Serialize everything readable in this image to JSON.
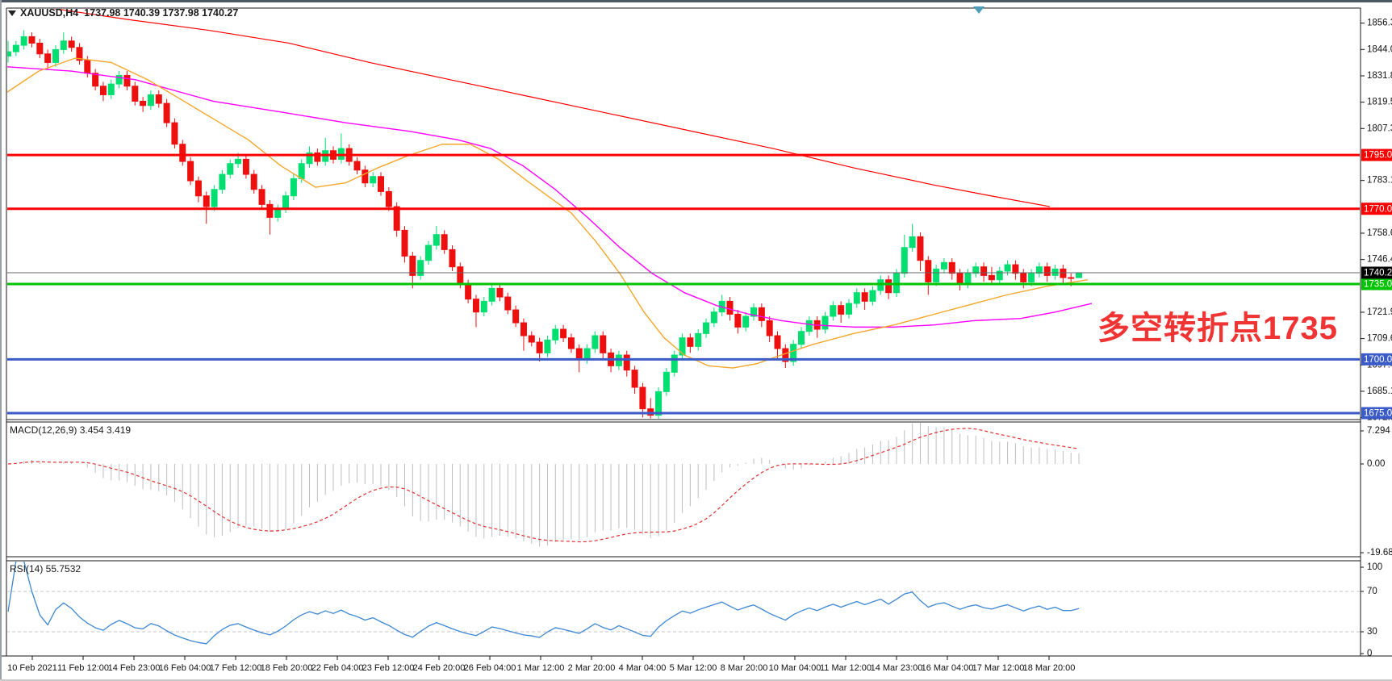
{
  "window": {
    "title": "XAUUSD,H4  1737.98 1740.39 1737.98 1740.27",
    "symbol": "XAUUSD",
    "timeframe": "H4"
  },
  "annotation": {
    "text": "多空转折点1735",
    "color": "#f03333"
  },
  "indicators": {
    "macd": {
      "text": "MACD(12,26,9) 3.454 3.419",
      "name": "MACD",
      "params": [
        12,
        26,
        9
      ],
      "values": [
        3.454,
        3.419
      ],
      "axis_labels": [
        "7.294",
        "0.00",
        "-19.689"
      ],
      "histogram_color": "#bdbdbd",
      "signal_color": "#e03030"
    },
    "rsi": {
      "text": "RSI(14) 55.7532",
      "name": "RSI",
      "period": 14,
      "value": 55.7532,
      "levels": [
        70,
        30
      ],
      "axis_labels": [
        "100",
        "70",
        "30",
        "0"
      ],
      "line_color": "#3c86d2"
    }
  },
  "chart_data": {
    "type": "candlestick",
    "title": "XAUUSD,H4",
    "last_bar": {
      "open": 1737.98,
      "high": 1740.39,
      "low": 1737.98,
      "close": 1740.27
    },
    "ylim": [
      1672.0,
      1863.3
    ],
    "colors": {
      "up": "#00df70",
      "down": "#ee0f0f",
      "ma_fast": "#f4a62a",
      "ma_mid": "#ff00ff",
      "ma_slow": "#ff0000",
      "price_line": "#666666"
    },
    "price_axis_ticks": [
      1856.3,
      1844.05,
      1831.8,
      1819.55,
      1807.3,
      1783.15,
      1758.65,
      1746.4,
      1721.9,
      1709.65,
      1697.4,
      1685.15,
      1672.9
    ],
    "time_labels": [
      "10 Feb 2021",
      "11 Feb 12:00",
      "14 Feb 23:00",
      "16 Feb 04:00",
      "17 Feb 12:00",
      "18 Feb 20:00",
      "22 Feb 04:00",
      "23 Feb 12:00",
      "24 Feb 20:00",
      "26 Feb 04:00",
      "1 Mar 12:00",
      "2 Mar 20:00",
      "4 Mar 04:00",
      "5 Mar 12:00",
      "8 Mar 20:00",
      "10 Mar 04:00",
      "11 Mar 12:00",
      "14 Mar 23:00",
      "16 Mar 04:00",
      "17 Mar 12:00",
      "18 Mar 20:00"
    ],
    "h_lines": [
      {
        "price": 1795.0,
        "label": "1795.00",
        "color": "#ff0000",
        "width": 3
      },
      {
        "price": 1770.0,
        "label": "1770.00",
        "color": "#ff0000",
        "width": 3
      },
      {
        "price": 1735.0,
        "label": "1735.00",
        "color": "#00c300",
        "width": 3
      },
      {
        "price": 1700.0,
        "label": "1700.00",
        "color": "#3b5bc8",
        "width": 3
      },
      {
        "price": 1675.0,
        "label": "1675.00",
        "color": "#3b5bc8",
        "width": 3
      }
    ],
    "current_price": {
      "value": 1740.27,
      "label": "1740.27",
      "tag_bg": "#000000"
    },
    "candles": [
      [
        1841,
        1848,
        1838,
        1843
      ],
      [
        1843,
        1848,
        1841,
        1846
      ],
      [
        1846,
        1853,
        1844,
        1850
      ],
      [
        1850,
        1852,
        1845,
        1847
      ],
      [
        1847,
        1849,
        1840,
        1842
      ],
      [
        1842,
        1844,
        1835,
        1838
      ],
      [
        1838,
        1846,
        1836,
        1844
      ],
      [
        1844,
        1852,
        1842,
        1848
      ],
      [
        1848,
        1850,
        1843,
        1845
      ],
      [
        1845,
        1847,
        1837,
        1839
      ],
      [
        1839,
        1841,
        1831,
        1833
      ],
      [
        1833,
        1835,
        1825,
        1827
      ],
      [
        1827,
        1829,
        1820,
        1823
      ],
      [
        1823,
        1830,
        1821,
        1828
      ],
      [
        1828,
        1834,
        1826,
        1832
      ],
      [
        1832,
        1834,
        1825,
        1827
      ],
      [
        1827,
        1829,
        1818,
        1820
      ],
      [
        1820,
        1822,
        1815,
        1818
      ],
      [
        1818,
        1825,
        1816,
        1823
      ],
      [
        1823,
        1825,
        1817,
        1819
      ],
      [
        1819,
        1821,
        1808,
        1810
      ],
      [
        1810,
        1812,
        1798,
        1800
      ],
      [
        1800,
        1802,
        1790,
        1792
      ],
      [
        1792,
        1794,
        1781,
        1783
      ],
      [
        1783,
        1785,
        1773,
        1776
      ],
      [
        1776,
        1778,
        1763,
        1771
      ],
      [
        1771,
        1781,
        1769,
        1779
      ],
      [
        1779,
        1788,
        1777,
        1786
      ],
      [
        1786,
        1793,
        1784,
        1791
      ],
      [
        1791,
        1796,
        1789,
        1793
      ],
      [
        1793,
        1795,
        1784,
        1786
      ],
      [
        1786,
        1788,
        1777,
        1779
      ],
      [
        1779,
        1781,
        1770,
        1772
      ],
      [
        1772,
        1774,
        1758,
        1766
      ],
      [
        1766,
        1772,
        1764,
        1770
      ],
      [
        1770,
        1778,
        1768,
        1776
      ],
      [
        1776,
        1786,
        1774,
        1784
      ],
      [
        1784,
        1793,
        1782,
        1791
      ],
      [
        1791,
        1799,
        1789,
        1796
      ],
      [
        1796,
        1798,
        1790,
        1792
      ],
      [
        1792,
        1803,
        1790,
        1797
      ],
      [
        1797,
        1799,
        1791,
        1793
      ],
      [
        1793,
        1805,
        1791,
        1798
      ],
      [
        1798,
        1800,
        1790,
        1792
      ],
      [
        1792,
        1794,
        1786,
        1788
      ],
      [
        1788,
        1790,
        1780,
        1782
      ],
      [
        1782,
        1787,
        1780,
        1785
      ],
      [
        1785,
        1787,
        1776,
        1778
      ],
      [
        1778,
        1780,
        1769,
        1771
      ],
      [
        1771,
        1773,
        1757,
        1760
      ],
      [
        1760,
        1762,
        1745,
        1748
      ],
      [
        1748,
        1750,
        1733,
        1739
      ],
      [
        1739,
        1748,
        1737,
        1746
      ],
      [
        1746,
        1755,
        1744,
        1753
      ],
      [
        1753,
        1762,
        1751,
        1758
      ],
      [
        1758,
        1760,
        1749,
        1751
      ],
      [
        1751,
        1753,
        1741,
        1743
      ],
      [
        1743,
        1745,
        1733,
        1735
      ],
      [
        1735,
        1737,
        1726,
        1728
      ],
      [
        1728,
        1730,
        1715,
        1722
      ],
      [
        1722,
        1729,
        1720,
        1727
      ],
      [
        1727,
        1735,
        1725,
        1733
      ],
      [
        1733,
        1735,
        1727,
        1729
      ],
      [
        1729,
        1731,
        1721,
        1723
      ],
      [
        1723,
        1725,
        1715,
        1717
      ],
      [
        1717,
        1719,
        1704,
        1711
      ],
      [
        1711,
        1713,
        1706,
        1708
      ],
      [
        1708,
        1710,
        1699,
        1703
      ],
      [
        1703,
        1711,
        1701,
        1709
      ],
      [
        1709,
        1716,
        1707,
        1714
      ],
      [
        1714,
        1716,
        1708,
        1710
      ],
      [
        1710,
        1712,
        1703,
        1705
      ],
      [
        1705,
        1707,
        1694,
        1700
      ],
      [
        1700,
        1707,
        1698,
        1705
      ],
      [
        1705,
        1713,
        1703,
        1711
      ],
      [
        1711,
        1713,
        1700,
        1703
      ],
      [
        1703,
        1705,
        1694,
        1697
      ],
      [
        1697,
        1704,
        1695,
        1702
      ],
      [
        1702,
        1704,
        1692,
        1695
      ],
      [
        1695,
        1697,
        1684,
        1687
      ],
      [
        1687,
        1689,
        1673,
        1677
      ],
      [
        1677,
        1682,
        1672.5,
        1674
      ],
      [
        1674,
        1687,
        1672,
        1685
      ],
      [
        1685,
        1696,
        1683,
        1694
      ],
      [
        1694,
        1704,
        1692,
        1702
      ],
      [
        1702,
        1712,
        1700,
        1710
      ],
      [
        1710,
        1712,
        1703,
        1706
      ],
      [
        1706,
        1714,
        1704,
        1712
      ],
      [
        1712,
        1719,
        1710,
        1717
      ],
      [
        1717,
        1724,
        1715,
        1722
      ],
      [
        1722,
        1730,
        1720,
        1727
      ],
      [
        1727,
        1729,
        1718,
        1721
      ],
      [
        1721,
        1723,
        1712,
        1715
      ],
      [
        1715,
        1722,
        1713,
        1720
      ],
      [
        1720,
        1726,
        1718,
        1724
      ],
      [
        1724,
        1726,
        1715,
        1718
      ],
      [
        1718,
        1720,
        1708,
        1711
      ],
      [
        1711,
        1713,
        1700,
        1705
      ],
      [
        1705,
        1707,
        1696,
        1699
      ],
      [
        1699,
        1709,
        1697,
        1707
      ],
      [
        1707,
        1715,
        1705,
        1713
      ],
      [
        1713,
        1720,
        1711,
        1718
      ],
      [
        1718,
        1720,
        1710,
        1714
      ],
      [
        1714,
        1722,
        1712,
        1720
      ],
      [
        1720,
        1727,
        1718,
        1725
      ],
      [
        1725,
        1727,
        1717,
        1721
      ],
      [
        1721,
        1728,
        1719,
        1726
      ],
      [
        1726,
        1733,
        1724,
        1731
      ],
      [
        1731,
        1733,
        1723,
        1727
      ],
      [
        1727,
        1734,
        1725,
        1732
      ],
      [
        1732,
        1739,
        1730,
        1737
      ],
      [
        1737,
        1739,
        1728,
        1731
      ],
      [
        1731,
        1742,
        1729,
        1740
      ],
      [
        1740,
        1758,
        1738,
        1752
      ],
      [
        1752,
        1763,
        1750,
        1757
      ],
      [
        1757,
        1759,
        1741,
        1746
      ],
      [
        1746,
        1748,
        1730,
        1736
      ],
      [
        1736,
        1744,
        1734,
        1742
      ],
      [
        1742,
        1747,
        1740,
        1745
      ],
      [
        1745,
        1747,
        1737,
        1740
      ],
      [
        1740,
        1742,
        1732,
        1735
      ],
      [
        1735,
        1742,
        1733,
        1740
      ],
      [
        1740,
        1745,
        1738,
        1743
      ],
      [
        1743,
        1745,
        1736,
        1739
      ],
      [
        1739,
        1743,
        1735,
        1737
      ],
      [
        1737,
        1743,
        1735,
        1741
      ],
      [
        1741,
        1746,
        1739,
        1744
      ],
      [
        1744,
        1746,
        1737,
        1740
      ],
      [
        1740,
        1742,
        1733,
        1736
      ],
      [
        1736,
        1742,
        1734,
        1740
      ],
      [
        1740,
        1745,
        1738,
        1743
      ],
      [
        1743,
        1745,
        1736,
        1739
      ],
      [
        1739,
        1744,
        1737,
        1742
      ],
      [
        1742,
        1744,
        1735,
        1738
      ],
      [
        1738,
        1740,
        1734,
        1737.98
      ],
      [
        1737.98,
        1740.39,
        1737.98,
        1740.27
      ]
    ],
    "moving_averages": [
      {
        "name": "ma-slow-red",
        "color": "#ff0000",
        "width": 1.2,
        "points": [
          [
            60,
            1863
          ],
          [
            150,
            1858
          ],
          [
            250,
            1853
          ],
          [
            350,
            1847
          ],
          [
            450,
            1838
          ],
          [
            550,
            1830
          ],
          [
            650,
            1822
          ],
          [
            750,
            1814
          ],
          [
            850,
            1806
          ],
          [
            950,
            1798
          ],
          [
            1050,
            1789
          ],
          [
            1150,
            1781
          ],
          [
            1220,
            1776
          ],
          [
            1293,
            1771
          ]
        ]
      },
      {
        "name": "ma-mid-magenta",
        "color": "#ff00ff",
        "width": 1.4,
        "points": [
          [
            0,
            1836
          ],
          [
            80,
            1834
          ],
          [
            160,
            1830
          ],
          [
            256,
            1820
          ],
          [
            340,
            1815
          ],
          [
            420,
            1810
          ],
          [
            500,
            1806
          ],
          [
            560,
            1802
          ],
          [
            600,
            1798
          ],
          [
            640,
            1790
          ],
          [
            680,
            1779
          ],
          [
            720,
            1766
          ],
          [
            760,
            1752
          ],
          [
            800,
            1740
          ],
          [
            840,
            1731
          ],
          [
            880,
            1725
          ],
          [
            920,
            1721
          ],
          [
            960,
            1718
          ],
          [
            1000,
            1716
          ],
          [
            1050,
            1715
          ],
          [
            1100,
            1715
          ],
          [
            1150,
            1716
          ],
          [
            1200,
            1718
          ],
          [
            1257,
            1719
          ],
          [
            1300,
            1722
          ],
          [
            1345,
            1726
          ]
        ]
      },
      {
        "name": "ma-fast-orange",
        "color": "#f4a62a",
        "width": 1.4,
        "points": [
          [
            0,
            1824
          ],
          [
            40,
            1834
          ],
          [
            85,
            1840
          ],
          [
            130,
            1838
          ],
          [
            175,
            1830
          ],
          [
            220,
            1820
          ],
          [
            260,
            1811
          ],
          [
            300,
            1802
          ],
          [
            340,
            1790
          ],
          [
            383,
            1780
          ],
          [
            420,
            1782
          ],
          [
            460,
            1789
          ],
          [
            500,
            1795
          ],
          [
            540,
            1800
          ],
          [
            575,
            1800
          ],
          [
            610,
            1793
          ],
          [
            645,
            1783
          ],
          [
            667,
            1777
          ],
          [
            700,
            1768
          ],
          [
            730,
            1755
          ],
          [
            760,
            1740
          ],
          [
            790,
            1722
          ],
          [
            815,
            1710
          ],
          [
            840,
            1702
          ],
          [
            870,
            1697
          ],
          [
            900,
            1696
          ],
          [
            930,
            1698
          ],
          [
            960,
            1702
          ],
          [
            1000,
            1707
          ],
          [
            1050,
            1712
          ],
          [
            1100,
            1716
          ],
          [
            1150,
            1721
          ],
          [
            1190,
            1725
          ],
          [
            1240,
            1730
          ],
          [
            1290,
            1734
          ],
          [
            1340,
            1737
          ]
        ]
      }
    ]
  }
}
